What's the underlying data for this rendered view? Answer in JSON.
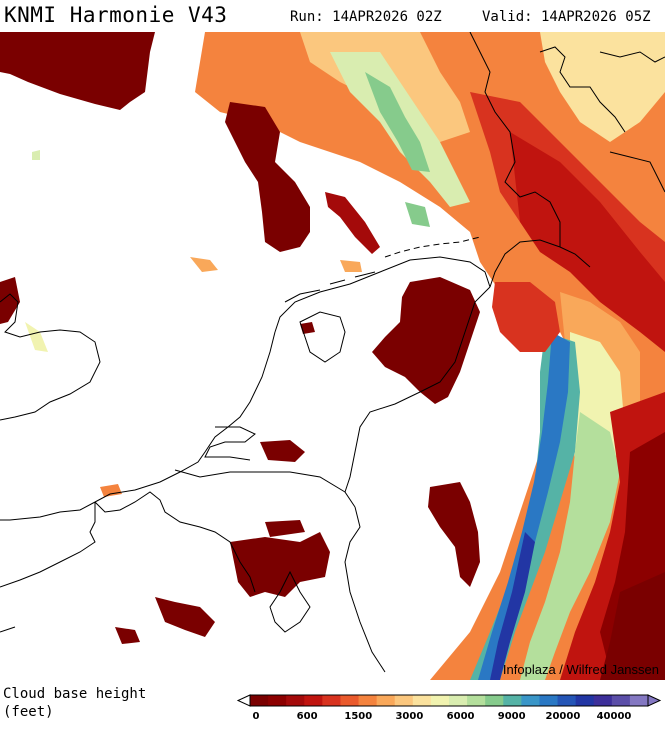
{
  "header": {
    "title": "KNMI Harmonie V43",
    "run": "Run: 14APR2026 02Z",
    "valid": "Valid: 14APR2026 05Z"
  },
  "map": {
    "credit": "Infoplaza / Wilfred Janssen"
  },
  "footer": {
    "variable_label_line1": "Cloud base height",
    "variable_label_line2": "(feet)"
  },
  "legend": {
    "unit": "feet",
    "tick_labels": [
      "0",
      "600",
      "1500",
      "3000",
      "6000",
      "9000",
      "20000",
      "40000"
    ],
    "colors": [
      "#7a0000",
      "#8c0000",
      "#a40a0a",
      "#c0140f",
      "#d8331f",
      "#ea5a2c",
      "#f4833e",
      "#f9a85a",
      "#fbc77e",
      "#fbe29e",
      "#f1f3b0",
      "#d9edb0",
      "#b4df9c",
      "#86cb8c",
      "#55b3a6",
      "#3a96c8",
      "#2a78c4",
      "#2455b6",
      "#2236a4",
      "#3d2f9a",
      "#5b4ea8",
      "#8478c2"
    ]
  }
}
